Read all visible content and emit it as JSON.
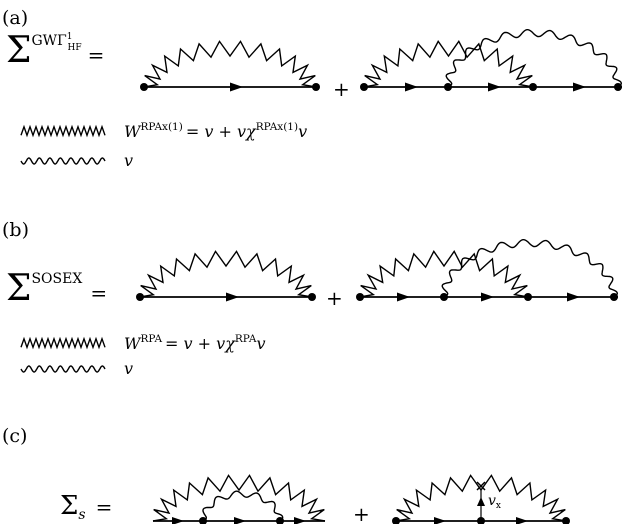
{
  "panels": [
    {
      "id": "a",
      "label": "(a)",
      "lhs": {
        "symbol": "Σ",
        "sup": "GWΓ",
        "sup_sup": "1",
        "sup_sub": "HF",
        "eq": "="
      },
      "plus": "+",
      "legend": [
        {
          "line": "zigzag",
          "lhs_base": "W",
          "lhs_sup": "RPAx(1)",
          "rhs_a": "= v + vχ",
          "rhs_sup": "RPAx(1)",
          "rhs_b": "v"
        },
        {
          "line": "wavy",
          "text": "v"
        }
      ]
    },
    {
      "id": "b",
      "label": "(b)",
      "lhs": {
        "symbol": "Σ",
        "sup": "SOSEX",
        "eq": "="
      },
      "plus": "+",
      "legend": [
        {
          "line": "zigzag",
          "lhs_base": "W",
          "lhs_sup": "RPA",
          "rhs_a": "= v + vχ",
          "rhs_sup": "RPA",
          "rhs_b": "v"
        },
        {
          "line": "wavy",
          "text": "v"
        }
      ]
    },
    {
      "id": "c",
      "label": "(c)",
      "lhs": {
        "symbol": "Σ",
        "sub": "s",
        "eq": "="
      },
      "plus": "+",
      "vertex_label": {
        "base": "v",
        "sub": "x"
      }
    }
  ]
}
